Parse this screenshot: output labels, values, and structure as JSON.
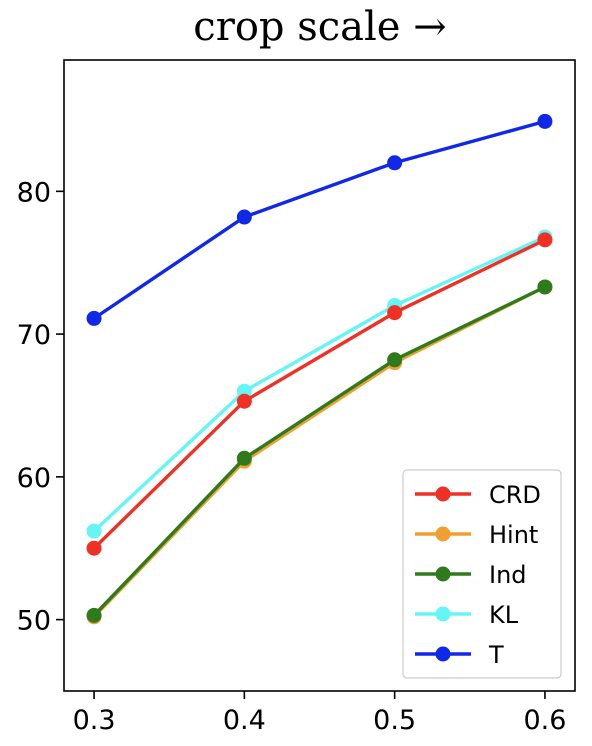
{
  "chart_data": {
    "type": "line",
    "title": "crop scale →",
    "xlabel": "",
    "ylabel": "",
    "x": [
      0.3,
      0.4,
      0.5,
      0.6
    ],
    "x_tick_labels": [
      "0.3",
      "0.4",
      "0.5",
      "0.6"
    ],
    "y_ticks": [
      50,
      60,
      70,
      80
    ],
    "y_tick_labels": [
      "50",
      "60",
      "70",
      "80"
    ],
    "xlim": [
      0.28,
      0.62
    ],
    "ylim": [
      45.0,
      89.2
    ],
    "grid": false,
    "legend_position": "lower-right",
    "series": [
      {
        "name": "CRD",
        "color": "#ee3124",
        "values": [
          55.0,
          65.3,
          71.5,
          76.6
        ]
      },
      {
        "name": "Hint",
        "color": "#f0a030",
        "values": [
          50.2,
          61.1,
          68.0,
          73.3
        ]
      },
      {
        "name": "Ind",
        "color": "#2e7a1c",
        "values": [
          50.3,
          61.3,
          68.2,
          73.3
        ]
      },
      {
        "name": "KL",
        "color": "#66f5f5",
        "values": [
          56.2,
          66.0,
          72.0,
          76.8
        ]
      },
      {
        "name": "T",
        "color": "#1028e8",
        "values": [
          71.1,
          78.2,
          82.0,
          84.9
        ]
      }
    ]
  }
}
